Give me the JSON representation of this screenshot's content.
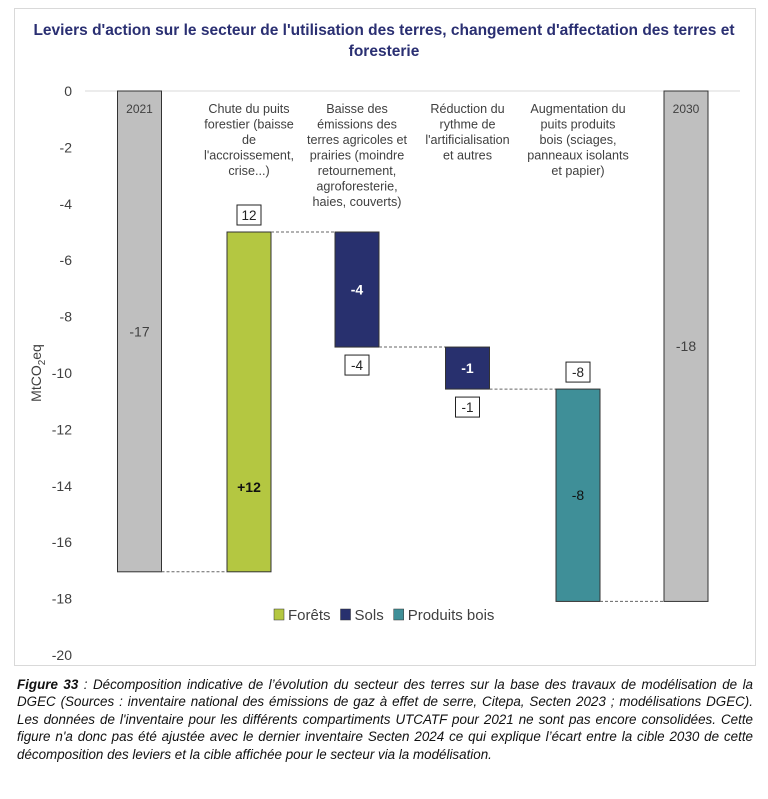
{
  "chart_data": {
    "type": "waterfall",
    "title": "Leviers d'action sur le secteur de l'utilisation des terres, changement d'affectation des terres et foresterie",
    "ylabel": "MtCO2eq",
    "ylim": [
      -20,
      0
    ],
    "yticks": [
      0,
      -2,
      -4,
      -6,
      -8,
      -10,
      -12,
      -14,
      -16,
      -18,
      -20
    ],
    "grid": false,
    "legend_position": "bottom",
    "bars": [
      {
        "category": "2021",
        "kind": "total",
        "start": 0,
        "end": -17.05,
        "label": "-17",
        "color": "#bfbfbf"
      },
      {
        "category": "Chute du puits forestier (baisse de l'accroissement, crise...)",
        "kind": "delta",
        "series": "Forêts",
        "start": -17.05,
        "end": -5.0,
        "label": "+12",
        "box_label": "12",
        "box_pos": "above",
        "color": "#b4c741"
      },
      {
        "category": "Baisse des émissions des terres agricoles et prairies (moindre retournement, agroforesterie, haies, couverts)",
        "kind": "delta",
        "series": "Sols",
        "start": -5.0,
        "end": -9.08,
        "label": "-4",
        "box_label": "-4",
        "box_pos": "below",
        "color": "#28306e"
      },
      {
        "category": "Réduction du rythme de l'artificialisation et autres",
        "kind": "delta",
        "series": "Sols",
        "start": -9.08,
        "end": -10.57,
        "label": "-1",
        "box_label": "-1",
        "box_pos": "below",
        "color": "#28306e"
      },
      {
        "category": "Augmentation du puits produits bois (sciages, panneaux isolants et papier)",
        "kind": "delta",
        "series": "Produits bois",
        "start": -10.57,
        "end": -18.1,
        "label": "-8",
        "box_label": "-8",
        "box_pos": "above",
        "color": "#3f8f98"
      },
      {
        "category": "2030",
        "kind": "total",
        "start": 0,
        "end": -18.1,
        "label": "-18",
        "color": "#bfbfbf"
      }
    ],
    "category_lines": [
      [
        "2021"
      ],
      [
        "Chute du puits",
        "forestier (baisse",
        "de",
        "l'accroissement,",
        "crise...)"
      ],
      [
        "Baisse des",
        "émissions des",
        "terres agricoles et",
        "prairies (moindre",
        "retournement,",
        "agroforesterie,",
        "haies, couverts)"
      ],
      [
        "Réduction du",
        "rythme de",
        "l'artificialisation",
        "et autres"
      ],
      [
        "Augmentation du",
        "puits produits",
        "bois (sciages,",
        "panneaux isolants",
        "et papier)"
      ],
      [
        "2030"
      ]
    ],
    "legend": [
      {
        "name": "Forêts",
        "color": "#b4c741"
      },
      {
        "name": "Sols",
        "color": "#28306e"
      },
      {
        "name": "Produits bois",
        "color": "#3f8f98"
      }
    ]
  },
  "caption": {
    "label": "Figure 33",
    "text": " : Décomposition indicative de l’évolution du secteur des terres sur la base des travaux de modélisation de la DGEC (Sources : inventaire national des émissions de gaz à effet de serre, Citepa, Secten 2023 ; modélisations DGEC). Les données de l'inventaire pour les différents compartiments UTCATF pour 2021 ne sont pas encore consolidées. Cette figure n'a donc pas été ajustée avec le dernier inventaire Secten 2024 ce qui explique l’écart entre la cible 2030 de cette décomposition des leviers et la cible affichée pour le secteur via la modélisation."
  }
}
